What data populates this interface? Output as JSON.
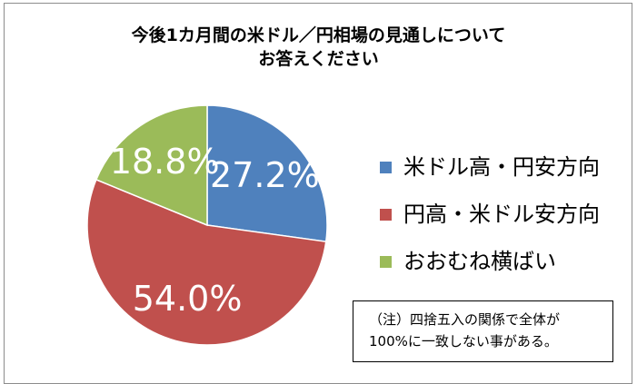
{
  "chart_data": {
    "type": "pie",
    "title_lines": [
      "今後1カ月間の米ドル／円相場の見通しについて",
      "お答えください"
    ],
    "slices": [
      {
        "name": "米ドル高・円安方向",
        "value": 27.2,
        "label": "27.2%",
        "color": "#4f81bd"
      },
      {
        "name": "円高・米ドル安方向",
        "value": 54.0,
        "label": "54.0%",
        "color": "#c0504d"
      },
      {
        "name": "おおむね横ばい",
        "value": 18.8,
        "label": "18.8%",
        "color": "#9bbb59"
      }
    ],
    "legend_position": "right",
    "note_lines": [
      "（注）四捨五入の関係で全体が",
      "100%に一致しない事がある。"
    ]
  }
}
